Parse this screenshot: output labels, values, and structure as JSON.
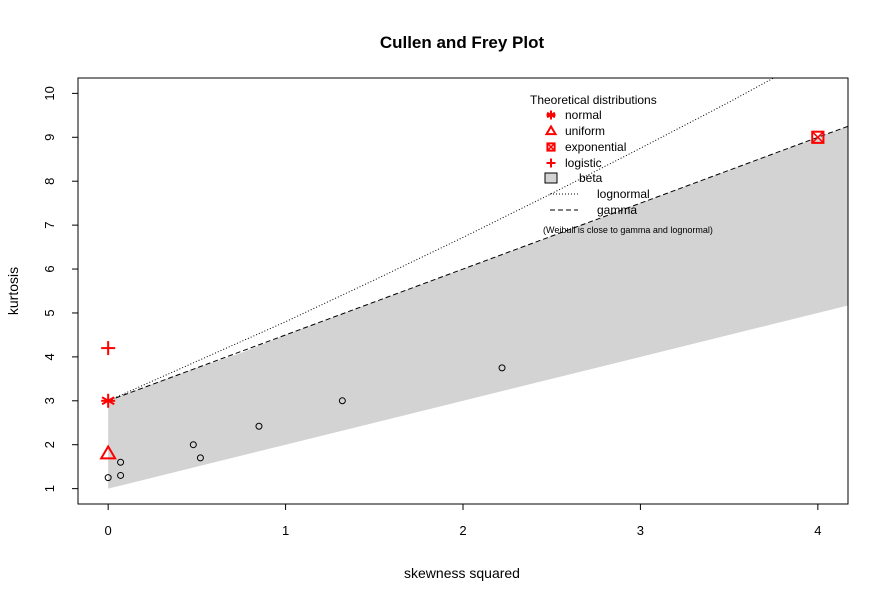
{
  "chart_data": {
    "type": "scatter",
    "title": "Cullen and Frey Plot",
    "xlabel": "skewness squared",
    "ylabel": "kurtosis",
    "xlim": [
      -0.17,
      4.17
    ],
    "ylim": [
      10.35,
      0.65
    ],
    "y_reversed": true,
    "xticks": [
      0,
      1,
      2,
      3,
      4
    ],
    "yticks": [
      1,
      2,
      3,
      4,
      5,
      6,
      7,
      8,
      9,
      10
    ],
    "observations": [
      {
        "x": 0.0,
        "y": 1.25
      },
      {
        "x": 0.07,
        "y": 1.3
      },
      {
        "x": 0.07,
        "y": 1.6
      },
      {
        "x": 0.52,
        "y": 1.7
      },
      {
        "x": 0.48,
        "y": 2.0
      },
      {
        "x": 0.85,
        "y": 2.42
      },
      {
        "x": 1.32,
        "y": 3.0
      },
      {
        "x": 2.22,
        "y": 3.75
      }
    ],
    "theoretical_points": [
      {
        "name": "normal",
        "x": 0,
        "y": 3,
        "symbol": "asterisk"
      },
      {
        "name": "uniform",
        "x": 0,
        "y": 1.8,
        "symbol": "triangle"
      },
      {
        "name": "exponential",
        "x": 4,
        "y": 9,
        "symbol": "boxed-x"
      },
      {
        "name": "logistic",
        "x": 0,
        "y": 4.2,
        "symbol": "plus"
      }
    ],
    "beta_region": {
      "upper": [
        [
          0,
          1
        ],
        [
          4.17,
          5.17
        ]
      ],
      "lower": [
        [
          0,
          3
        ],
        [
          0.25,
          3.38
        ],
        [
          0.5,
          3.75
        ],
        [
          0.75,
          4.09
        ],
        [
          1,
          4.5
        ],
        [
          1.5,
          5.25
        ],
        [
          2,
          6.0
        ],
        [
          2.5,
          6.75
        ],
        [
          3,
          7.5
        ],
        [
          3.5,
          8.25
        ],
        [
          4,
          9.0
        ],
        [
          4.17,
          9.25
        ]
      ]
    },
    "lognormal_curve": [
      [
        0,
        3
      ],
      [
        0.25,
        3.45
      ],
      [
        0.5,
        3.9
      ],
      [
        0.75,
        4.35
      ],
      [
        1,
        4.8
      ],
      [
        1.5,
        5.75
      ],
      [
        2,
        6.72
      ],
      [
        2.5,
        7.72
      ],
      [
        3,
        8.75
      ],
      [
        3.5,
        9.8
      ],
      [
        3.75,
        10.35
      ]
    ],
    "gamma_curve": [
      [
        0,
        3
      ],
      [
        0.5,
        3.75
      ],
      [
        1,
        4.5
      ],
      [
        1.5,
        5.25
      ],
      [
        2,
        6.0
      ],
      [
        2.5,
        6.75
      ],
      [
        3,
        7.5
      ],
      [
        3.5,
        8.25
      ],
      [
        4,
        9.0
      ],
      [
        4.17,
        9.25
      ]
    ],
    "legend": {
      "title": "Theoretical distributions",
      "items": [
        {
          "label": "normal",
          "symbol": "asterisk"
        },
        {
          "label": "uniform",
          "symbol": "triangle"
        },
        {
          "label": "exponential",
          "symbol": "boxed-x"
        },
        {
          "label": "logistic",
          "symbol": "plus"
        },
        {
          "label": "beta",
          "symbol": "gray-box"
        },
        {
          "label": "lognormal",
          "symbol": "dotted-line"
        },
        {
          "label": "gamma",
          "symbol": "dashed-line"
        }
      ],
      "note": "(Weibull is close to gamma and lognormal)",
      "placement": "top-right"
    },
    "colors": {
      "theoretical": "#ff0000",
      "beta_fill": "#d3d3d3",
      "observations": "#000000"
    }
  }
}
